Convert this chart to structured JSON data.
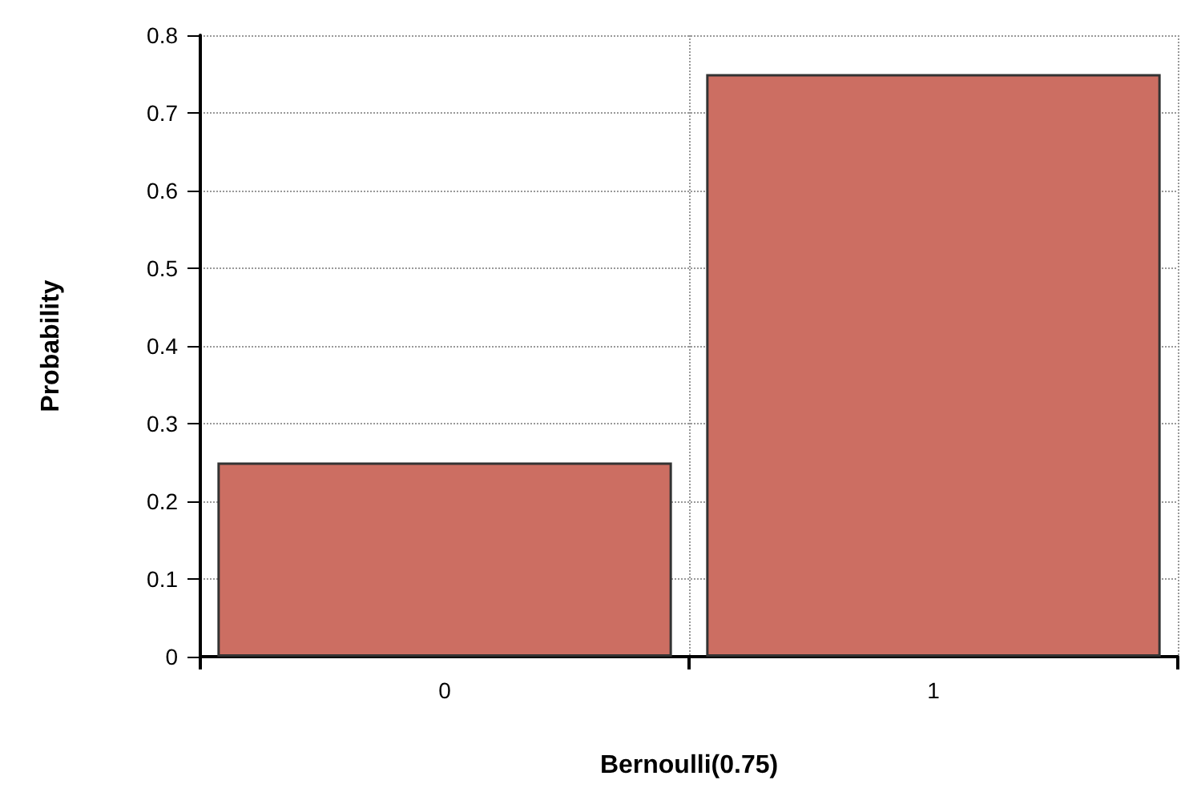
{
  "chart_data": {
    "type": "bar",
    "xlabel": "Bernoulli(0.75)",
    "ylabel": "Probability",
    "categories": [
      "0",
      "1"
    ],
    "values": [
      0.25,
      0.75
    ],
    "color": "#cc6e62",
    "ylim": [
      0,
      0.8
    ],
    "yticks": [
      0,
      0.1,
      0.2,
      0.3,
      0.4,
      0.5,
      0.6,
      0.7,
      0.8
    ],
    "grid": true
  }
}
